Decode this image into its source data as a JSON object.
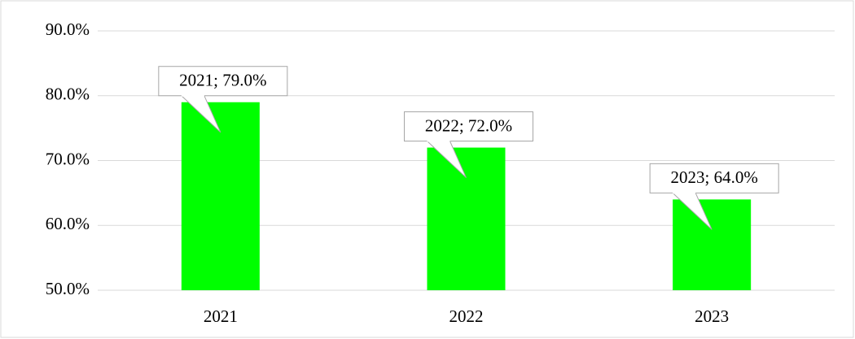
{
  "chart_data": {
    "type": "bar",
    "categories": [
      "2021",
      "2022",
      "2023"
    ],
    "values": [
      79,
      72,
      64
    ],
    "value_labels": [
      "2021; 79.0%",
      "2022; 72.0%",
      "2023; 64.0%"
    ],
    "color": "#00ff00",
    "ylim": [
      50,
      90
    ],
    "yticks": [
      {
        "value": 50,
        "label": "50.0%"
      },
      {
        "value": 60,
        "label": "60.0%"
      },
      {
        "value": 70,
        "label": "70.0%"
      },
      {
        "value": 80,
        "label": "80.0%"
      },
      {
        "value": 90,
        "label": "90.0%"
      }
    ],
    "grid": true
  }
}
